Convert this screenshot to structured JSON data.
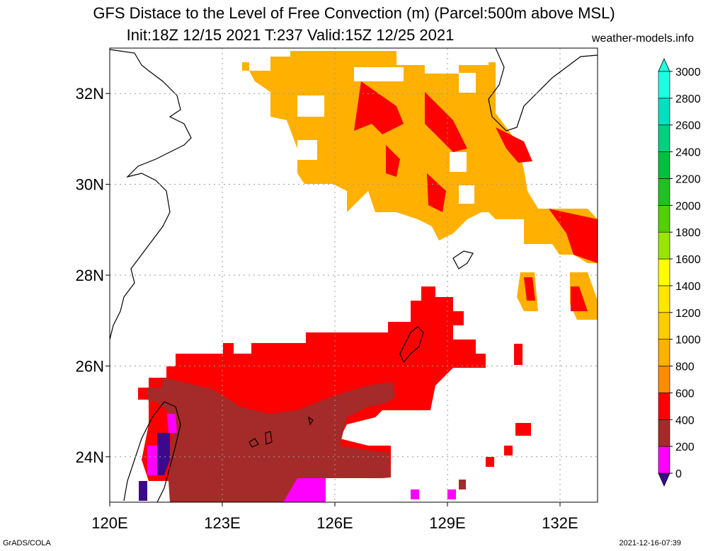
{
  "title": {
    "line1": "GFS Distace to the Level of Free Convection (m) (Parcel:500m above MSL)",
    "line2": "Init:18Z 12/15 2021 T:237 Valid:15Z 12/25 2021",
    "site": "weather-models.info"
  },
  "footer": {
    "left": "GrADS/COLA",
    "right": "2021-12-16-07:39"
  },
  "map": {
    "lon_range": [
      120,
      133
    ],
    "lat_range": [
      23,
      33
    ],
    "lon_ticks": [
      {
        "v": 120,
        "label": "120E"
      },
      {
        "v": 123,
        "label": "123E"
      },
      {
        "v": 126,
        "label": "126E"
      },
      {
        "v": 129,
        "label": "129E"
      },
      {
        "v": 132,
        "label": "132E"
      }
    ],
    "lat_ticks": [
      {
        "v": 24,
        "label": "24N"
      },
      {
        "v": 26,
        "label": "26N"
      },
      {
        "v": 28,
        "label": "28N"
      },
      {
        "v": 30,
        "label": "30N"
      },
      {
        "v": 32,
        "label": "32N"
      }
    ],
    "grid": "dotted"
  },
  "colorbar": {
    "levels": [
      "0",
      "200",
      "400",
      "600",
      "800",
      "1000",
      "1200",
      "1400",
      "1600",
      "1800",
      "2000",
      "2200",
      "2400",
      "2600",
      "2800",
      "3000"
    ],
    "colors": [
      "#3b0a8c",
      "#ff00ff",
      "#a52a2a",
      "#ff0000",
      "#ff8c00",
      "#ffb000",
      "#ffcc00",
      "#ffe600",
      "#ffff00",
      "#9be600",
      "#52d000",
      "#20c020",
      "#00c040",
      "#00d080",
      "#00e0c0",
      "#20ffe0"
    ]
  }
}
